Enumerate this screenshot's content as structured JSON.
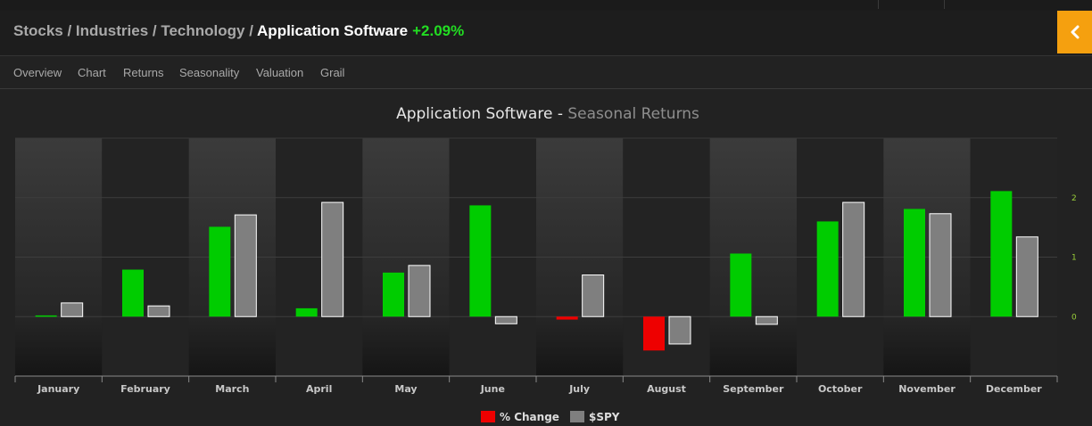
{
  "breadcrumb": {
    "items": [
      "Stocks",
      "Industries",
      "Technology"
    ],
    "separator": " / ",
    "current": "Application Software",
    "change": "+2.09%",
    "change_color": "#22dd22"
  },
  "collapse_button": {
    "color": "#f5a00f",
    "icon": "chevron-left-icon"
  },
  "tabs": [
    {
      "label": "Overview",
      "active": false
    },
    {
      "label": "Chart",
      "active": false
    },
    {
      "label": "Returns",
      "active": false
    },
    {
      "label": "Seasonality",
      "active": true
    },
    {
      "label": "Valuation",
      "active": false
    },
    {
      "label": "Grail",
      "active": false
    }
  ],
  "chart_data": {
    "type": "bar",
    "title": "Application Software",
    "title_separator": " - ",
    "subtitle": "Seasonal Returns",
    "categories": [
      "January",
      "February",
      "March",
      "April",
      "May",
      "June",
      "July",
      "August",
      "September",
      "October",
      "November",
      "December"
    ],
    "series": [
      {
        "name": "% Change",
        "legend_color": "#ee0000",
        "positive_color": "#00cc00",
        "negative_color": "#ee0000",
        "values": [
          0.02,
          0.79,
          1.51,
          0.14,
          0.74,
          1.87,
          -0.05,
          -0.57,
          1.06,
          1.6,
          1.81,
          2.11
        ]
      },
      {
        "name": "$SPY",
        "color": "#7f7f7f",
        "values": [
          0.23,
          0.18,
          1.71,
          1.92,
          0.86,
          -0.12,
          0.7,
          -0.46,
          -0.13,
          1.92,
          1.73,
          1.34
        ]
      }
    ],
    "ylim": [
      -1,
      3
    ],
    "yticks": [
      "0",
      "1",
      "2"
    ],
    "ytick_values": [
      0,
      1,
      2
    ],
    "y_axis_side": "right",
    "xlabel": "",
    "ylabel": "",
    "grid": true,
    "legend_position": "bottom-center"
  }
}
